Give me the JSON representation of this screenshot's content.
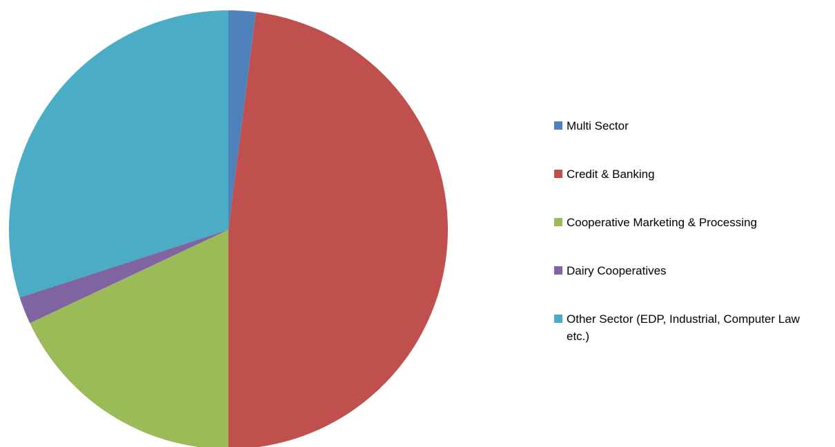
{
  "chart_data": {
    "type": "pie",
    "categories": [
      "Multi Sector",
      "Credit & Banking",
      "Cooperative Marketing & Processing",
      "Dairy Cooperatives",
      "Other Sector (EDP, Industrial, Computer Law etc.)"
    ],
    "values": [
      2,
      48,
      18,
      2,
      30
    ],
    "colors": [
      "#4f81bd",
      "#c0504d",
      "#9bbb59",
      "#8064a2",
      "#4bacc6"
    ],
    "legend": "right"
  }
}
